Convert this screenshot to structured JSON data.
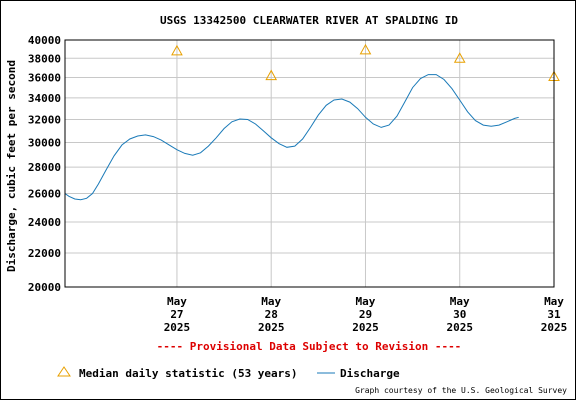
{
  "chart_data": {
    "type": "line",
    "title": "USGS 13342500 CLEARWATER RIVER AT SPALDING ID",
    "ylabel": "Discharge, cubic feet per second",
    "xlabel": "",
    "yscale": "log",
    "ylim": [
      20000,
      40000
    ],
    "yticks": [
      20000,
      22000,
      24000,
      26000,
      28000,
      30000,
      32000,
      34000,
      36000,
      38000,
      40000
    ],
    "xlim": [
      "2025-05-26T07:30",
      "2025-05-31T12:00"
    ],
    "xticks": [
      {
        "month": "May",
        "day": "27",
        "year": "2025",
        "t": "2025-05-27T12:00"
      },
      {
        "month": "May",
        "day": "28",
        "year": "2025",
        "t": "2025-05-28T12:00"
      },
      {
        "month": "May",
        "day": "29",
        "year": "2025",
        "t": "2025-05-29T12:00"
      },
      {
        "month": "May",
        "day": "30",
        "year": "2025",
        "t": "2025-05-30T12:00"
      },
      {
        "month": "May",
        "day": "31",
        "year": "2025",
        "t": "2025-05-31T12:00"
      }
    ],
    "grid": true,
    "legend_position": "bottom",
    "series": [
      {
        "name": "Discharge",
        "color": "#1a7ab8",
        "points": [
          [
            "2025-05-26T07:30",
            26000
          ],
          [
            "2025-05-26T08:30",
            25800
          ],
          [
            "2025-05-26T10:00",
            25600
          ],
          [
            "2025-05-26T11:30",
            25550
          ],
          [
            "2025-05-26T13:00",
            25650
          ],
          [
            "2025-05-26T14:30",
            26000
          ],
          [
            "2025-05-26T16:00",
            26700
          ],
          [
            "2025-05-26T18:00",
            27800
          ],
          [
            "2025-05-26T20:00",
            28900
          ],
          [
            "2025-05-26T22:00",
            29800
          ],
          [
            "2025-05-27T00:00",
            30300
          ],
          [
            "2025-05-27T02:00",
            30550
          ],
          [
            "2025-05-27T04:00",
            30650
          ],
          [
            "2025-05-27T06:00",
            30500
          ],
          [
            "2025-05-27T08:00",
            30200
          ],
          [
            "2025-05-27T10:00",
            29800
          ],
          [
            "2025-05-27T12:00",
            29400
          ],
          [
            "2025-05-27T14:00",
            29100
          ],
          [
            "2025-05-27T16:00",
            28950
          ],
          [
            "2025-05-27T18:00",
            29150
          ],
          [
            "2025-05-27T20:00",
            29700
          ],
          [
            "2025-05-27T22:00",
            30400
          ],
          [
            "2025-05-28T00:00",
            31200
          ],
          [
            "2025-05-28T02:00",
            31800
          ],
          [
            "2025-05-28T04:00",
            32050
          ],
          [
            "2025-05-28T06:00",
            32000
          ],
          [
            "2025-05-28T08:00",
            31600
          ],
          [
            "2025-05-28T10:00",
            31000
          ],
          [
            "2025-05-28T12:00",
            30400
          ],
          [
            "2025-05-28T14:00",
            29900
          ],
          [
            "2025-05-28T16:00",
            29600
          ],
          [
            "2025-05-28T18:00",
            29700
          ],
          [
            "2025-05-28T20:00",
            30300
          ],
          [
            "2025-05-28T22:00",
            31300
          ],
          [
            "2025-05-29T00:00",
            32400
          ],
          [
            "2025-05-29T02:00",
            33300
          ],
          [
            "2025-05-29T04:00",
            33800
          ],
          [
            "2025-05-29T06:00",
            33900
          ],
          [
            "2025-05-29T08:00",
            33600
          ],
          [
            "2025-05-29T10:00",
            33000
          ],
          [
            "2025-05-29T12:00",
            32200
          ],
          [
            "2025-05-29T14:00",
            31600
          ],
          [
            "2025-05-29T16:00",
            31300
          ],
          [
            "2025-05-29T18:00",
            31500
          ],
          [
            "2025-05-29T20:00",
            32300
          ],
          [
            "2025-05-29T22:00",
            33600
          ],
          [
            "2025-05-30T00:00",
            35000
          ],
          [
            "2025-05-30T02:00",
            35900
          ],
          [
            "2025-05-30T04:00",
            36300
          ],
          [
            "2025-05-30T06:00",
            36300
          ],
          [
            "2025-05-30T08:00",
            35800
          ],
          [
            "2025-05-30T10:00",
            34900
          ],
          [
            "2025-05-30T12:00",
            33800
          ],
          [
            "2025-05-30T14:00",
            32700
          ],
          [
            "2025-05-30T16:00",
            31900
          ],
          [
            "2025-05-30T18:00",
            31500
          ],
          [
            "2025-05-30T20:00",
            31400
          ],
          [
            "2025-05-30T22:00",
            31500
          ],
          [
            "2025-05-31T00:00",
            31800
          ],
          [
            "2025-05-31T02:00",
            32100
          ],
          [
            "2025-05-31T03:00",
            32200
          ]
        ]
      },
      {
        "name": "Median daily statistic (53 years)",
        "color": "#e8a000",
        "marker": "triangle",
        "points": [
          [
            "2025-05-27T12:00",
            38800
          ],
          [
            "2025-05-28T12:00",
            36200
          ],
          [
            "2025-05-29T12:00",
            38900
          ],
          [
            "2025-05-30T12:00",
            38000
          ],
          [
            "2025-05-31T12:00",
            36100
          ]
        ]
      }
    ],
    "annotations": [
      "---- Provisional Data Subject to Revision ----"
    ]
  },
  "legend": {
    "median_label": "Median daily statistic (53 years)",
    "discharge_label": "Discharge"
  },
  "credit": "Graph courtesy of the U.S. Geological Survey",
  "colors": {
    "discharge": "#1a7ab8",
    "median": "#e8a000",
    "provisional": "#dd0000",
    "grid": "#c8c8c8"
  }
}
